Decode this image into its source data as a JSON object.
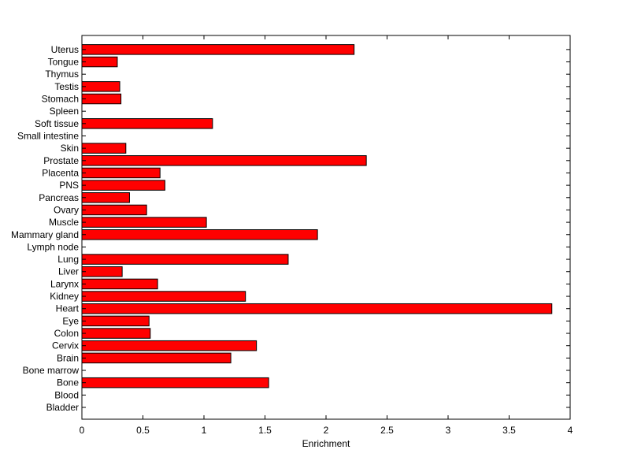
{
  "chart_data": {
    "type": "bar",
    "orientation": "horizontal",
    "categories": [
      "Bladder",
      "Blood",
      "Bone",
      "Bone marrow",
      "Brain",
      "Cervix",
      "Colon",
      "Eye",
      "Heart",
      "Kidney",
      "Larynx",
      "Liver",
      "Lung",
      "Lymph node",
      "Mammary gland",
      "Muscle",
      "Ovary",
      "Pancreas",
      "PNS",
      "Placenta",
      "Prostate",
      "Skin",
      "Small intestine",
      "Soft tissue",
      "Spleen",
      "Stomach",
      "Testis",
      "Thymus",
      "Tongue",
      "Uterus"
    ],
    "values": [
      0,
      0,
      1.53,
      0,
      1.22,
      1.43,
      0.56,
      0.55,
      3.85,
      1.34,
      0.62,
      0.33,
      1.69,
      0,
      1.93,
      1.02,
      0.53,
      0.39,
      0.68,
      0.64,
      2.33,
      0.36,
      0,
      1.07,
      0,
      0.32,
      0.31,
      0,
      0.29,
      2.23
    ],
    "xlabel": "Enrichment",
    "ylabel": "",
    "xlim": [
      0,
      4
    ],
    "xticks": [
      "0",
      "0.5",
      "1",
      "1.5",
      "2",
      "2.5",
      "3",
      "3.5",
      "4"
    ],
    "xtick_values": [
      0,
      0.5,
      1,
      1.5,
      2,
      2.5,
      3,
      3.5,
      4
    ],
    "grid": false,
    "bar_color": "#ff0000",
    "edge_color": "#000000"
  }
}
